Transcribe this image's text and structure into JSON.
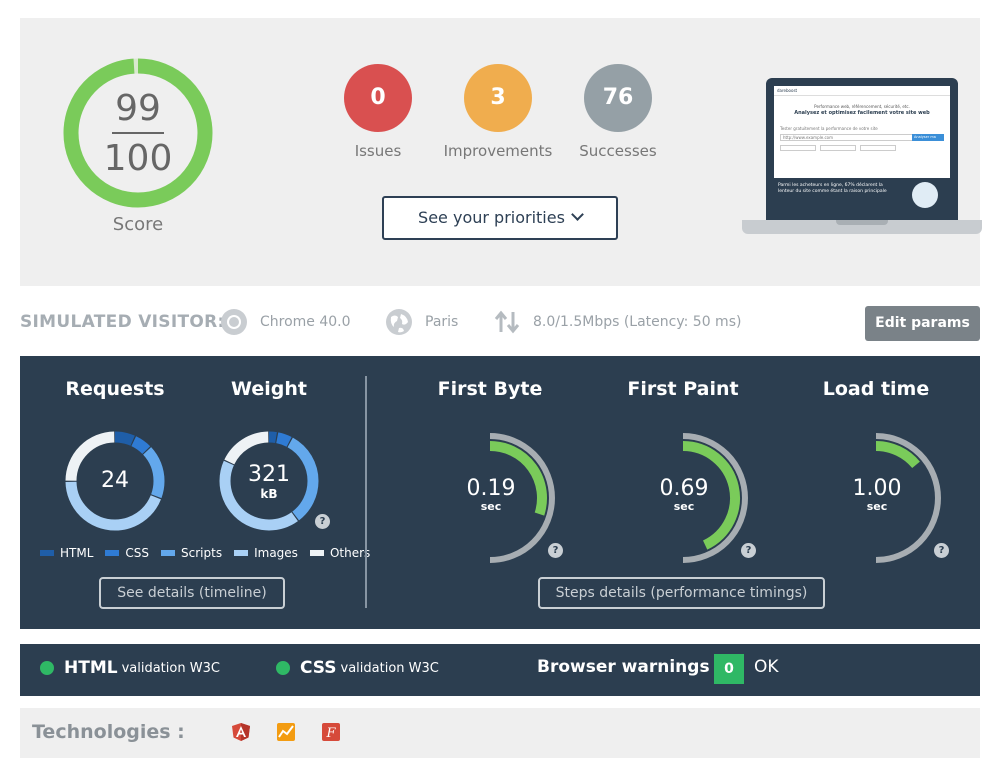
{
  "score": {
    "value": "99",
    "max": "100",
    "fraction": 0.99,
    "label": "Score",
    "color": "#7acb5a"
  },
  "badges": [
    {
      "value": "0",
      "label": "Issues",
      "color": "#d95050"
    },
    {
      "value": "3",
      "label": "Improvements",
      "color": "#f0ad4e"
    },
    {
      "value": "76",
      "label": "Successes",
      "color": "#95a0a6"
    }
  ],
  "priorities_button": "See your priorities",
  "laptop_preview": {
    "nav_brand": "dareboost",
    "subtitle": "Performance web, référencement, sécurité, etc.",
    "headline": "Analysez et optimisez facilement votre site web",
    "form_label": "Tester gratuitement la performance de votre site",
    "input_placeholder": "http://www.example.com",
    "go_label": "Analyser ma page",
    "banner_text": "Parmi les acheteurs en ligne, 67% déclarent la lenteur du site comme étant la raison principale"
  },
  "visitor": {
    "title": "SIMULATED VISITOR:",
    "browser": "Chrome 40.0",
    "location": "Paris",
    "connection": "8.0/1.5Mbps (Latency: 50 ms)",
    "edit_button": "Edit params"
  },
  "metrics": {
    "requests_title": "Requests",
    "weight_title": "Weight",
    "requests_value": "24",
    "weight_value": "321",
    "weight_unit": "kB",
    "legend": [
      {
        "label": "HTML",
        "color": "#1f5ea8"
      },
      {
        "label": "CSS",
        "color": "#2f7bd4"
      },
      {
        "label": "Scripts",
        "color": "#63a8ec"
      },
      {
        "label": "Images",
        "color": "#a9d0f5"
      },
      {
        "label": "Others",
        "color": "#eef2f5"
      }
    ],
    "requests_breakdown": [
      {
        "type": "HTML",
        "share": 0.07
      },
      {
        "type": "CSS",
        "share": 0.06
      },
      {
        "type": "Scripts",
        "share": 0.18
      },
      {
        "type": "Images",
        "share": 0.44
      },
      {
        "type": "Others",
        "share": 0.25
      }
    ],
    "weight_breakdown": [
      {
        "type": "HTML",
        "share": 0.03
      },
      {
        "type": "CSS",
        "share": 0.05
      },
      {
        "type": "Scripts",
        "share": 0.32
      },
      {
        "type": "Images",
        "share": 0.42
      },
      {
        "type": "Others",
        "share": 0.18
      }
    ],
    "timeline_button": "See details (timeline)",
    "steps_button": "Steps details (performance timings)",
    "gauges": [
      {
        "title": "First Byte",
        "value": "0.19",
        "unit": "sec",
        "fraction": 0.3
      },
      {
        "title": "First Paint",
        "value": "0.69",
        "unit": "sec",
        "fraction": 0.43
      },
      {
        "title": "Load time",
        "value": "1.00",
        "unit": "sec",
        "fraction": 0.14
      }
    ],
    "help_mark": "?"
  },
  "validation": {
    "html_bold": "HTML",
    "html_text": "validation W3C",
    "css_bold": "CSS",
    "css_text": "validation W3C",
    "warnings_title": "Browser warnings",
    "warnings_count": "0",
    "warnings_status": "OK"
  },
  "technologies": {
    "title": "Technologies :",
    "icons": [
      "angularjs-icon",
      "chart-analytics-icon",
      "font-f-icon"
    ]
  }
}
